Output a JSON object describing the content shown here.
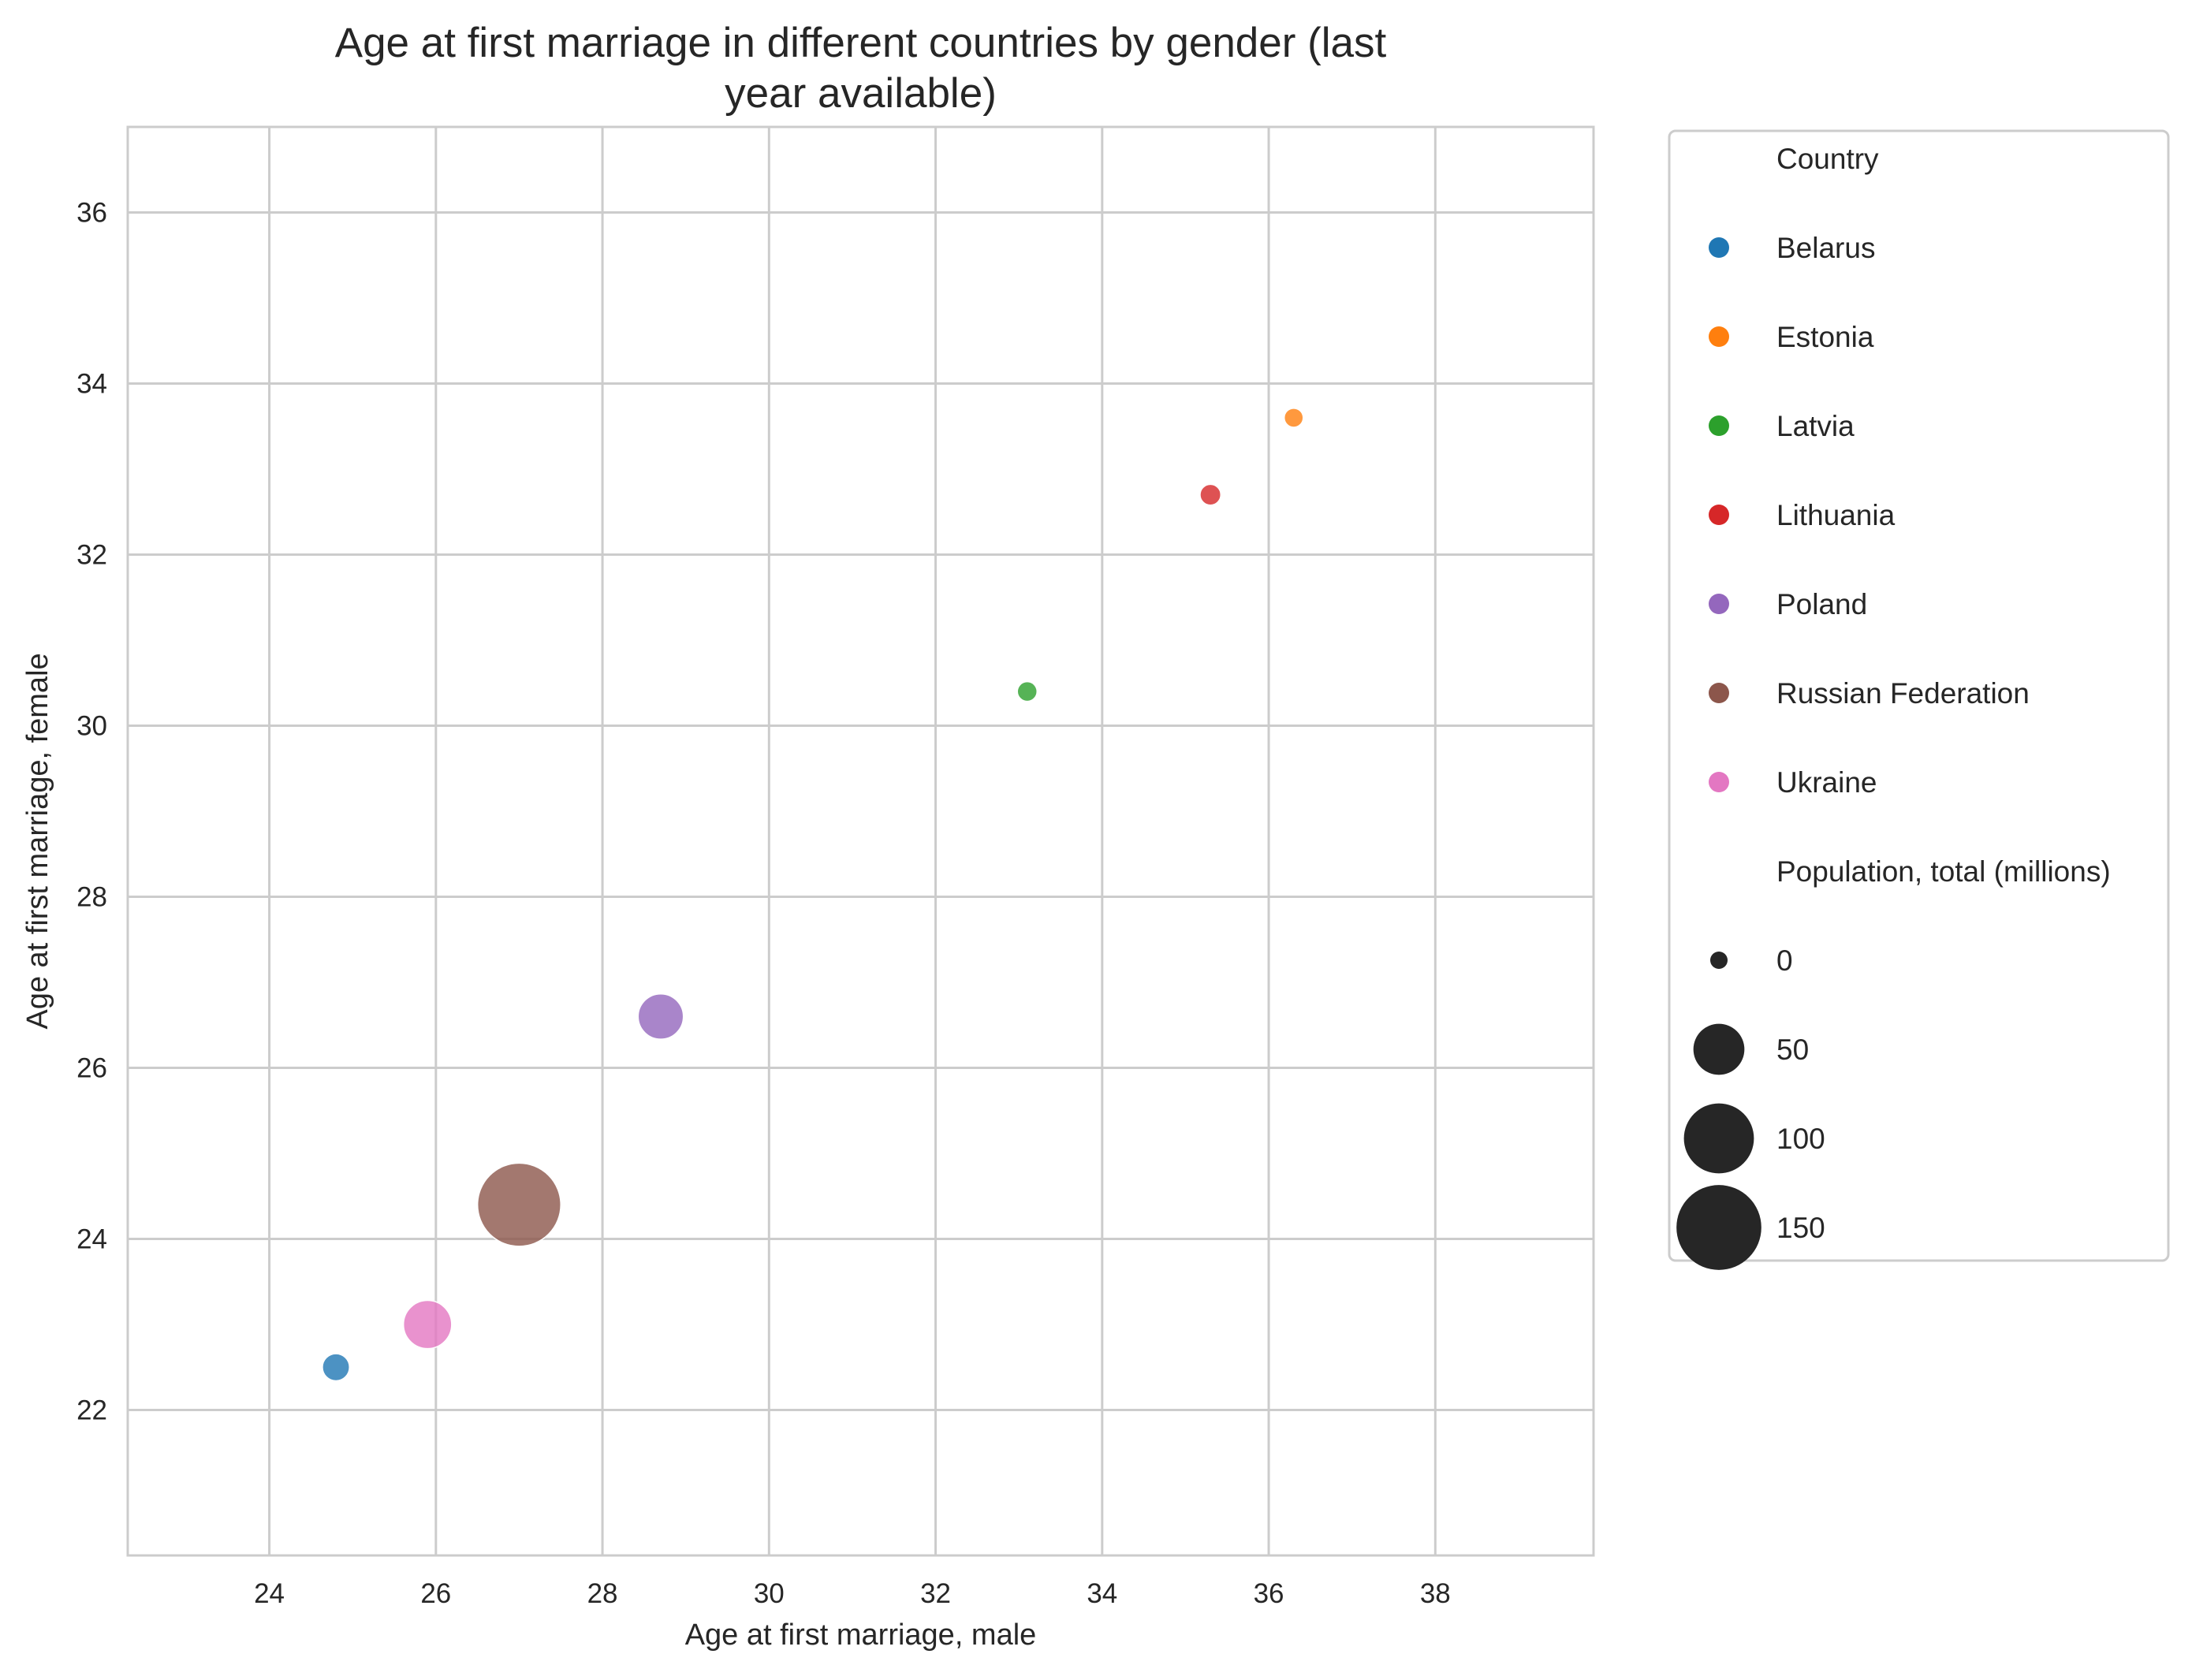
{
  "chart_data": {
    "type": "scatter",
    "title": "Age at first marriage in different countries by gender (last year available)",
    "title_lines": [
      "Age at first marriage in different countries by gender (last",
      "year available)"
    ],
    "xlabel": "Age at first marriage, male",
    "ylabel": "Age at first marriage, female",
    "xlim": [
      22.3,
      39.9
    ],
    "ylim": [
      20.3,
      37.0
    ],
    "xticks": [
      24,
      26,
      28,
      30,
      32,
      34,
      36,
      38
    ],
    "yticks": [
      22,
      24,
      26,
      28,
      30,
      32,
      34,
      36
    ],
    "grid": true,
    "legend_placement": "outside right",
    "hue_title": "Country",
    "size_title": "Population, total (millions)",
    "size_legend_values": [
      0,
      50,
      100,
      150
    ],
    "size_legend_labels": [
      "0",
      "50",
      "100",
      "150"
    ],
    "size_legend_color": "#262626",
    "series": [
      {
        "name": "Belarus",
        "color": "#1f77b4",
        "x": 24.8,
        "y": 22.5,
        "population": 9.4
      },
      {
        "name": "Estonia",
        "color": "#ff7f0e",
        "x": 36.3,
        "y": 33.6,
        "population": 1.3
      },
      {
        "name": "Latvia",
        "color": "#2ca02c",
        "x": 33.1,
        "y": 30.4,
        "population": 1.9
      },
      {
        "name": "Lithuania",
        "color": "#d62728",
        "x": 35.3,
        "y": 32.7,
        "population": 2.8
      },
      {
        "name": "Poland",
        "color": "#9467bd",
        "x": 28.7,
        "y": 26.6,
        "population": 38.0
      },
      {
        "name": "Russian Federation",
        "color": "#8c564b",
        "x": 27.0,
        "y": 24.4,
        "population": 144.0
      },
      {
        "name": "Ukraine",
        "color": "#e377c2",
        "x": 25.9,
        "y": 23.0,
        "population": 44.0
      }
    ]
  }
}
